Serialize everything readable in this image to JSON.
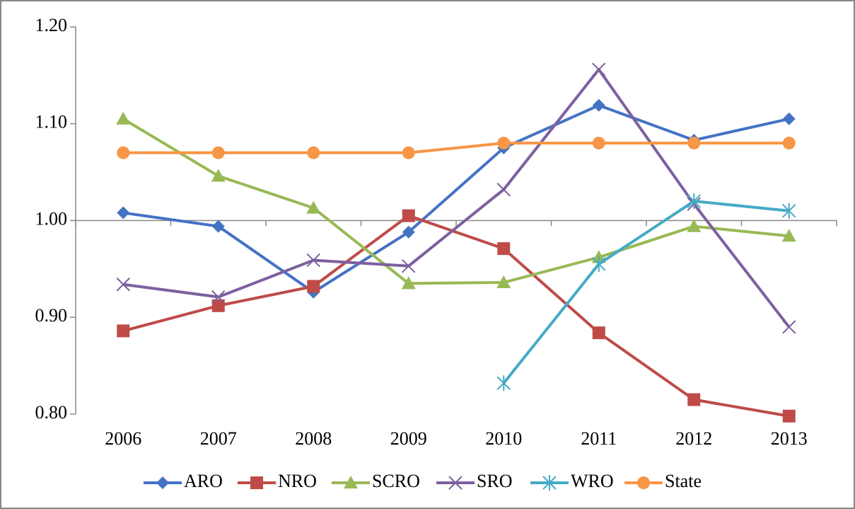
{
  "chart_data": {
    "type": "line",
    "categories": [
      "2006",
      "2007",
      "2008",
      "2009",
      "2010",
      "2011",
      "2012",
      "2013"
    ],
    "series": [
      {
        "name": "ARO",
        "color": "#4472c4",
        "marker": "diamond",
        "values": [
          1.008,
          0.994,
          0.926,
          0.988,
          1.075,
          1.119,
          1.083,
          1.105
        ]
      },
      {
        "name": "NRO",
        "color": "#be4b48",
        "marker": "square",
        "values": [
          0.886,
          0.912,
          0.932,
          1.005,
          0.971,
          0.884,
          0.815,
          0.798
        ]
      },
      {
        "name": "SCRO",
        "color": "#98b954",
        "marker": "triangle",
        "values": [
          1.105,
          1.046,
          1.013,
          0.935,
          0.936,
          0.962,
          0.994,
          0.984
        ]
      },
      {
        "name": "SRO",
        "color": "#7d60a0",
        "marker": "cross",
        "values": [
          0.934,
          0.921,
          0.959,
          0.953,
          1.032,
          1.156,
          1.017,
          0.89
        ]
      },
      {
        "name": "WRO",
        "color": "#46aac5",
        "marker": "star",
        "values": [
          null,
          null,
          null,
          null,
          0.832,
          0.955,
          1.02,
          1.01
        ]
      },
      {
        "name": "State",
        "color": "#f79646",
        "marker": "circle",
        "values": [
          1.07,
          1.07,
          1.07,
          1.07,
          1.08,
          1.08,
          1.08,
          1.08
        ]
      }
    ],
    "ylim": [
      0.8,
      1.2
    ],
    "yticks": [
      {
        "value": 0.8,
        "label": "0.80"
      },
      {
        "value": 0.9,
        "label": "0.90"
      },
      {
        "value": 1.0,
        "label": "1.00"
      },
      {
        "value": 1.1,
        "label": "1.10"
      },
      {
        "value": 1.2,
        "label": "1.20"
      }
    ],
    "x_axis_at": 1.0,
    "grid": false,
    "legend": "bottom"
  }
}
